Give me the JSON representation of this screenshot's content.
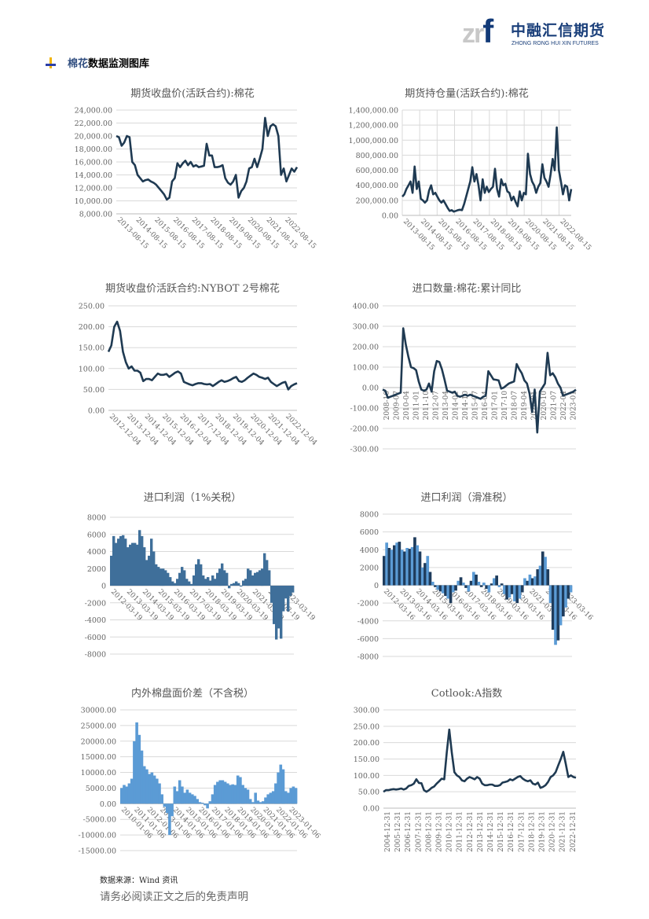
{
  "header": {
    "logo_mark_a": "zr",
    "logo_mark_b": "f",
    "logo_cn": "中融汇信期货",
    "logo_en": "ZHONG RONG HUI XIN FUTURES",
    "section_title_a": "棉花",
    "section_title_b": "数据监测图库"
  },
  "colors": {
    "line": "#1f3a52",
    "bar_mid": "#3f6f9a",
    "bar_dark": "#1f3c5c",
    "bar_light": "#5b9bd5",
    "grid": "#d9d9d9"
  },
  "chart_data": [
    {
      "type": "line",
      "title": "期货收盘价(活跃合约):棉花",
      "ylim": [
        8000,
        24000
      ],
      "yticks": [
        "8,000.00",
        "10,000.00",
        "12,000.00",
        "14,000.00",
        "16,000.00",
        "18,000.00",
        "20,000.00",
        "22,000.00",
        "24,000.00"
      ],
      "xticks": [
        "2013-08-15",
        "2014-08-15",
        "2015-08-15",
        "2016-08-15",
        "2017-08-15",
        "2018-08-15",
        "2019-08-15",
        "2020-08-15",
        "2021-08-15",
        "2022-08-15"
      ],
      "values": [
        20000,
        19800,
        18500,
        19000,
        20000,
        19800,
        16000,
        15500,
        14000,
        13500,
        13000,
        13200,
        13300,
        13000,
        12800,
        12500,
        12000,
        11500,
        11000,
        10200,
        10500,
        13000,
        13500,
        15800,
        15200,
        15800,
        16200,
        15500,
        16000,
        15300,
        15500,
        15200,
        15300,
        15400,
        18800,
        17000,
        17000,
        15200,
        15200,
        15300,
        15500,
        13500,
        12800,
        12500,
        13000,
        14000,
        10500,
        11500,
        12000,
        13000,
        15000,
        15200,
        16500,
        15200,
        16500,
        18000,
        22800,
        20000,
        21500,
        21800,
        21500,
        20000,
        14000,
        15000,
        13000,
        14000,
        15000,
        14500,
        15200
      ]
    },
    {
      "type": "line",
      "title": "期货持仓量(活跃合约):棉花",
      "ylim": [
        0,
        1400000
      ],
      "yticks": [
        "0.00",
        "200,000.00",
        "400,000.00",
        "600,000.00",
        "800,000.00",
        "1,000,000.00",
        "1,200,000.00",
        "1,400,000.00"
      ],
      "xticks": [
        "2013-08-15",
        "2014-08-15",
        "2015-08-15",
        "2016-08-15",
        "2017-08-15",
        "2018-08-15",
        "2019-08-15",
        "2020-08-15",
        "2021-08-15",
        "2022-08-15"
      ],
      "values": [
        250000,
        280000,
        350000,
        400000,
        450000,
        300000,
        650000,
        350000,
        450000,
        220000,
        200000,
        170000,
        200000,
        330000,
        400000,
        280000,
        300000,
        250000,
        200000,
        170000,
        200000,
        150000,
        100000,
        60000,
        70000,
        50000,
        60000,
        70000,
        75000,
        70000,
        150000,
        250000,
        350000,
        450000,
        640000,
        450000,
        550000,
        400000,
        200000,
        480000,
        300000,
        380000,
        310000,
        350000,
        380000,
        620000,
        350000,
        250000,
        480000,
        400000,
        420000,
        320000,
        300000,
        200000,
        250000,
        180000,
        120000,
        320000,
        200000,
        300000,
        280000,
        820000,
        550000,
        450000,
        400000,
        300000,
        380000,
        430000,
        680000,
        500000,
        450000,
        380000,
        550000,
        750000,
        600000,
        1170000,
        600000,
        450000,
        280000,
        400000,
        380000,
        200000,
        350000
      ]
    },
    {
      "type": "line",
      "title": "期货收盘价活跃合约:NYBOT 2号棉花",
      "ylim": [
        0,
        250
      ],
      "yticks": [
        "0.00",
        "50.00",
        "100.00",
        "150.00",
        "200.00",
        "250.00"
      ],
      "xticks": [
        "2012-12-04",
        "2013-12-04",
        "2014-12-04",
        "2015-12-04",
        "2016-12-04",
        "2017-12-04",
        "2018-12-04",
        "2019-12-04",
        "2020-12-04",
        "2021-12-04",
        "2022-12-04"
      ],
      "values": [
        140,
        155,
        200,
        212,
        190,
        140,
        115,
        100,
        105,
        95,
        95,
        90,
        70,
        75,
        75,
        72,
        80,
        88,
        85,
        85,
        87,
        80,
        85,
        90,
        93,
        88,
        68,
        65,
        62,
        60,
        63,
        65,
        65,
        63,
        62,
        63,
        58,
        63,
        68,
        72,
        68,
        70,
        73,
        77,
        80,
        70,
        68,
        72,
        78,
        83,
        88,
        85,
        80,
        78,
        75,
        78,
        68,
        63,
        58,
        62,
        66,
        68,
        50,
        58,
        62,
        65
      ]
    },
    {
      "type": "line",
      "title": "进口数量:棉花:累计同比",
      "ylim": [
        -300,
        400
      ],
      "yticks": [
        "-300.00",
        "-200.00",
        "-100.00",
        "0.00",
        "100.00",
        "200.00",
        "300.00",
        "400.00"
      ],
      "xticks": [
        "2008-10",
        "2009-07",
        "2010-04",
        "2011-01",
        "2011-10",
        "2012-07",
        "2013-04",
        "2014-01",
        "2014-10",
        "2015-07",
        "2016-04",
        "2017-01",
        "2017-10",
        "2018-07",
        "2019-04",
        "2020-01",
        "2020-10",
        "2021-07",
        "2022-04",
        "2023-01"
      ],
      "values": [
        -10,
        -15,
        -50,
        -45,
        -40,
        -35,
        -30,
        -25,
        290,
        210,
        150,
        100,
        95,
        85,
        30,
        -10,
        -15,
        -10,
        20,
        -20,
        80,
        130,
        125,
        90,
        40,
        -15,
        -20,
        -25,
        -20,
        -40,
        -45,
        -40,
        -35,
        -40,
        -35,
        -40,
        -45,
        -50,
        -55,
        -45,
        -40,
        80,
        60,
        40,
        38,
        35,
        -5,
        0,
        10,
        20,
        25,
        30,
        115,
        90,
        70,
        35,
        20,
        -30,
        -120,
        -10,
        -220,
        -20,
        0,
        20,
        170,
        60,
        70,
        50,
        20,
        0,
        -40,
        -35,
        -30,
        -25,
        -20,
        -10
      ]
    },
    {
      "type": "bar",
      "title": "进口利润（1%关税）",
      "ylim": [
        -8000,
        8000
      ],
      "yticks": [
        "-8000",
        "-6000",
        "-4000",
        "-2000",
        "0",
        "2000",
        "4000",
        "6000",
        "8000"
      ],
      "xticks": [
        "2012-03-19",
        "2013-03-19",
        "2014-03-19",
        "2015-03-19",
        "2016-03-19",
        "2017-03-19",
        "2018-03-19",
        "2019-03-19",
        "2020-03-19",
        "2021-03-19",
        "2022-03-19",
        "2023-03-19"
      ],
      "values": [
        3500,
        5800,
        5000,
        5500,
        5800,
        5900,
        5500,
        4500,
        4800,
        5000,
        5000,
        4800,
        6500,
        5800,
        4500,
        3000,
        3500,
        5500,
        4000,
        2500,
        2200,
        2000,
        2000,
        1800,
        1500,
        1000,
        500,
        300,
        800,
        1500,
        2200,
        1800,
        800,
        500,
        200,
        1200,
        2500,
        3100,
        2500,
        1200,
        800,
        1000,
        600,
        1200,
        800,
        1500,
        2000,
        2600,
        1800,
        1500,
        -300,
        200,
        300,
        500,
        300,
        -100,
        600,
        800,
        2000,
        1800,
        1200,
        1500,
        1600,
        1800,
        2000,
        3800,
        3000,
        1800,
        -2000,
        -4500,
        -6300,
        -5000,
        -6200,
        -3000,
        -1500,
        -3000,
        -1200,
        -800
      ]
    },
    {
      "type": "bar",
      "title": "进口利润（滑准税）",
      "ylim": [
        -8000,
        8000
      ],
      "yticks": [
        "-8000",
        "-6000",
        "-4000",
        "-2000",
        "0",
        "2000",
        "4000",
        "6000",
        "8000"
      ],
      "xticks": [
        "2012-03-16",
        "2013-03-16",
        "2014-03-16",
        "2015-03-16",
        "2016-03-16",
        "2017-03-16",
        "2018-03-16",
        "2019-03-16",
        "2020-03-16",
        "2021-03-16",
        "2022-03-16",
        "2023-03-16"
      ],
      "values": [
        3300,
        4800,
        4200,
        4000,
        4500,
        4800,
        4900,
        4000,
        3800,
        4200,
        4100,
        4300,
        5400,
        4500,
        3800,
        2000,
        2500,
        3300,
        1500,
        400,
        -200,
        -500,
        -700,
        -900,
        -1200,
        -1500,
        -2000,
        -800,
        -600,
        500,
        900,
        300,
        -300,
        -700,
        500,
        1500,
        1200,
        400,
        -200,
        300,
        -400,
        -800,
        200,
        800,
        1100,
        -200,
        200,
        -1000,
        -1600,
        -1400,
        -1000,
        -1800,
        -2000,
        -1500,
        -800,
        800,
        500,
        1200,
        800,
        1000,
        1800,
        2200,
        3800,
        3200,
        1800,
        -2000,
        -5000,
        -6700,
        -6200,
        -4500,
        -3500,
        -2500,
        -1500,
        -800
      ]
    },
    {
      "type": "bar",
      "title": "内外棉盘面价差（不含税）",
      "ylim": [
        -15000,
        30000
      ],
      "yticks": [
        "-15000.00",
        "-10000.00",
        "-5000.00",
        "0.00",
        "5000.00",
        "10000.00",
        "15000.00",
        "20000.00",
        "25000.00",
        "30000.00"
      ],
      "xticks": [
        "2010-01-06",
        "2011-01-06",
        "2012-01-06",
        "2013-01-06",
        "2014-01-06",
        "2015-01-06",
        "2016-01-06",
        "2017-01-06",
        "2018-01-06",
        "2019-01-06",
        "2020-01-06",
        "2021-01-06",
        "2022-01-06",
        "2023-01-06"
      ],
      "values": [
        5000,
        6000,
        5500,
        6500,
        8000,
        20000,
        26000,
        22000,
        17000,
        12000,
        11000,
        9500,
        10000,
        9000,
        8000,
        6500,
        3000,
        -1000,
        -3000,
        -10000,
        -4000,
        5500,
        4000,
        7500,
        5500,
        3500,
        4500,
        3500,
        3000,
        2500,
        1500,
        500,
        300,
        -500,
        -1500,
        800,
        3000,
        6000,
        7000,
        7500,
        7500,
        7000,
        6500,
        6000,
        6200,
        6000,
        9000,
        8500,
        6000,
        5000,
        4500,
        1500,
        500,
        3500,
        1000,
        500,
        800,
        2000,
        3000,
        3500,
        4000,
        6500,
        10000,
        12500,
        11000,
        4000,
        3500,
        5000,
        5500,
        5000
      ]
    },
    {
      "type": "line",
      "title": "Cotlook:A指数",
      "ylim": [
        0,
        300
      ],
      "yticks": [
        "0.00",
        "50.00",
        "100.00",
        "150.00",
        "200.00",
        "250.00",
        "300.00"
      ],
      "xticks": [
        "2004-12-31",
        "2005-12-31",
        "2006-12-31",
        "2007-12-31",
        "2008-12-31",
        "2009-12-31",
        "2010-12-31",
        "2011-12-31",
        "2012-12-31",
        "2013-12-31",
        "2014-12-31",
        "2015-12-31",
        "2016-12-31",
        "2017-12-31",
        "2018-12-31",
        "2019-12-31",
        "2020-12-31",
        "2021-12-31",
        "2022-12-31"
      ],
      "values": [
        50,
        55,
        55,
        57,
        58,
        57,
        58,
        60,
        57,
        60,
        68,
        70,
        75,
        88,
        77,
        76,
        55,
        50,
        55,
        62,
        66,
        75,
        82,
        90,
        88,
        170,
        240,
        170,
        110,
        100,
        95,
        85,
        82,
        90,
        95,
        92,
        88,
        95,
        90,
        75,
        70,
        70,
        72,
        72,
        68,
        68,
        70,
        78,
        80,
        82,
        88,
        85,
        90,
        95,
        98,
        90,
        85,
        82,
        85,
        75,
        72,
        78,
        62,
        65,
        70,
        80,
        95,
        100,
        110,
        130,
        150,
        172,
        135,
        95,
        100,
        95,
        93
      ]
    }
  ],
  "footer": {
    "source": "数据来源：Wind 资讯",
    "disclaimer": "请务必阅读正文之后的免责声明"
  }
}
